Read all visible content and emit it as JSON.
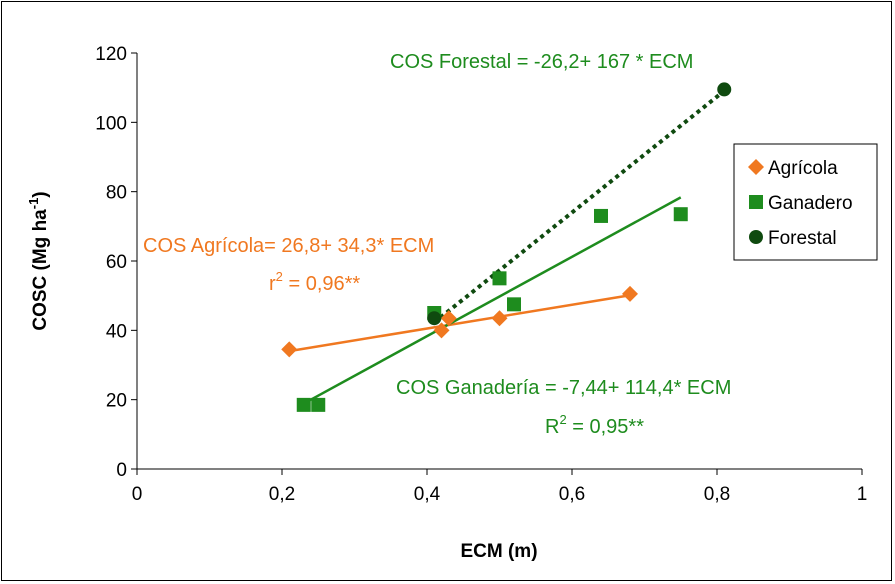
{
  "chart_data": {
    "type": "scatter",
    "xlabel": "ECM (m)",
    "ylabel_main": "COSC (Mg ha",
    "ylabel_sup": "-1",
    "ylabel_close": ")",
    "xlim": [
      0,
      1
    ],
    "ylim": [
      0,
      120
    ],
    "x_ticks": [
      0,
      0.2,
      0.4,
      0.6,
      0.8,
      1
    ],
    "x_tick_labels": [
      "0",
      "0,2",
      "0,4",
      "0,6",
      "0,8",
      "1"
    ],
    "y_ticks": [
      0,
      20,
      40,
      60,
      80,
      100,
      120
    ],
    "y_tick_labels": [
      "0",
      "20",
      "40",
      "60",
      "80",
      "100",
      "120"
    ],
    "grid": false,
    "legend_position": "right",
    "series": [
      {
        "name": "Agrícola",
        "color": "#F07820",
        "marker": "diamond",
        "points": [
          [
            0.21,
            34.5
          ],
          [
            0.42,
            40
          ],
          [
            0.43,
            43.5
          ],
          [
            0.5,
            43.5
          ],
          [
            0.68,
            50.5
          ]
        ],
        "fit": {
          "intercept": 26.8,
          "slope": 34.3,
          "x_range": [
            0.21,
            0.68
          ],
          "style": "solid"
        }
      },
      {
        "name": "Ganadero",
        "color": "#1E8C1E",
        "marker": "square",
        "points": [
          [
            0.23,
            18.5
          ],
          [
            0.25,
            18.5
          ],
          [
            0.41,
            45
          ],
          [
            0.5,
            55
          ],
          [
            0.52,
            47.5
          ],
          [
            0.64,
            73
          ],
          [
            0.75,
            73.5
          ]
        ],
        "fit": {
          "intercept": -7.44,
          "slope": 114.4,
          "x_range": [
            0.23,
            0.75
          ],
          "style": "solid"
        }
      },
      {
        "name": "Forestal",
        "color": "#0F4A0F",
        "marker": "circle",
        "points": [
          [
            0.41,
            43.5
          ],
          [
            0.81,
            109.5
          ]
        ],
        "fit": {
          "intercept": -26.2,
          "slope": 167,
          "x_range": [
            0.41,
            0.81
          ],
          "style": "dotted"
        }
      }
    ],
    "annotations": {
      "forestal_eq": "COS Forestal = -26,2+ 167 * ECM",
      "agricola_eq": "COS Agrícola= 26,8+ 34,3* ECM",
      "agricola_r2_pre": "r",
      "agricola_r2_sup": "2",
      "agricola_r2_post": " = 0,96**",
      "ganaderia_eq": "COS Ganadería = -7,44+ 114,4* ECM",
      "ganaderia_r2_pre": "R",
      "ganaderia_r2_sup": "2",
      "ganaderia_r2_post": " = 0,95**"
    }
  }
}
